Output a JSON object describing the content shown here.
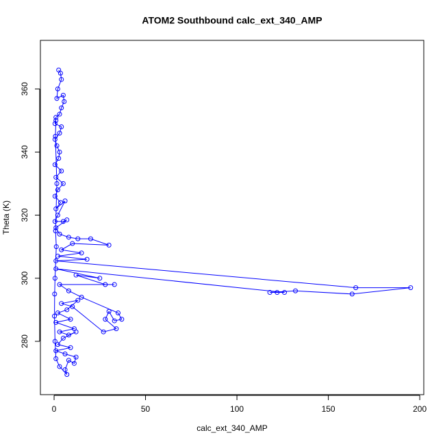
{
  "chart_data": {
    "type": "scatter",
    "title": "ATOM2 Southbound calc_ext_340_AMP",
    "x_label": "calc_ext_340_AMP",
    "y_label": "Theta (K)",
    "color": "#0000ff",
    "connect": true,
    "marker": "open-circle",
    "xlim": [
      -7.5,
      202.2
    ],
    "ylim": [
      263.1,
      375.4
    ],
    "xticks": [
      0,
      50,
      100,
      150,
      200
    ],
    "yticks": [
      280,
      300,
      320,
      340,
      360
    ],
    "x": [
      2.5,
      3.5,
      4,
      2,
      1.5,
      5,
      5.5,
      4,
      3,
      1,
      0.5,
      4,
      3,
      0.5,
      1.5,
      3,
      2.5,
      0.5,
      4,
      1,
      5,
      2,
      0.5,
      3.5,
      1,
      6,
      2,
      0.5,
      5,
      7,
      1,
      3,
      8,
      13,
      20,
      30,
      10,
      4,
      15,
      2,
      18,
      1,
      165,
      195,
      163,
      132,
      118,
      122,
      126,
      1,
      25,
      12,
      28,
      33,
      3,
      8,
      15,
      35,
      37,
      33,
      30,
      28,
      34,
      27,
      10,
      4,
      13,
      7,
      2,
      9,
      1,
      11,
      3,
      8,
      12,
      5,
      2,
      9,
      1,
      6,
      12,
      11,
      8,
      6,
      7,
      3,
      1,
      0.5,
      0.2,
      0.3,
      0.5,
      1.2,
      0.8,
      1.5,
      0.7,
      1
    ],
    "values": [
      366,
      365,
      363,
      360,
      357,
      358,
      356,
      354,
      352,
      351,
      349,
      348,
      346,
      344,
      342,
      340,
      338,
      336,
      334,
      332,
      330,
      328,
      326,
      324,
      322,
      324.5,
      320,
      318,
      318,
      318.5,
      316,
      314,
      313,
      312.5,
      312.5,
      310.5,
      311,
      309,
      308,
      307,
      306,
      305.5,
      297,
      297,
      295,
      296,
      295.5,
      295.5,
      295.5,
      303,
      300,
      301,
      298,
      298,
      298,
      296,
      294,
      289,
      287,
      286.5,
      289.5,
      287,
      284,
      283,
      291,
      292,
      293,
      290,
      289,
      287,
      286,
      284,
      283,
      282,
      283,
      281,
      279,
      278,
      277,
      276,
      275,
      273,
      274,
      271,
      269.5,
      272,
      274.5,
      280,
      288,
      295,
      300,
      310,
      315,
      330,
      345,
      350
    ]
  }
}
